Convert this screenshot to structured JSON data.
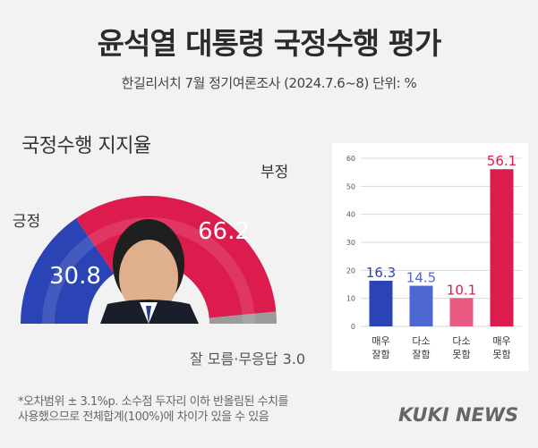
{
  "header": {
    "title": "윤석열 대통령 국정수행 평가",
    "subtitle": "한길리서치 7월 정기여론조사 (2024.7.6~8) 단위: %"
  },
  "section_title": "국정수행 지지율",
  "donut": {
    "positive_label": "긍정",
    "negative_label": "부정",
    "positive_value": "30.8",
    "negative_value": "66.2",
    "no_response_label": "잘 모름·무응답 3.0"
  },
  "bar_panel": {
    "categories": [
      [
        "매우",
        "잘함"
      ],
      [
        "다소",
        "잘함"
      ],
      [
        "다소",
        "못함"
      ],
      [
        "매우",
        "못함"
      ]
    ],
    "value_labels": [
      "16.3",
      "14.5",
      "10.1",
      "56.1"
    ],
    "ticks": [
      "0",
      "10",
      "20",
      "30",
      "40",
      "50",
      "60"
    ]
  },
  "footnote": {
    "line1": "*오차범위 ± 3.1%p. 소수점 두자리 이하 반올림된 수치를",
    "line2": "사용했으므로 전체합계(100%)에 차이가 있을 수 있음"
  },
  "brand": "KUKI NEWS",
  "colors": {
    "positive": "#2a44b5",
    "negative": "#dc1c4d",
    "no_response": "#9a9a9a",
    "bar_somewhat_good": "#4d68d2",
    "bar_somewhat_bad": "#e85a82"
  },
  "chart_data": [
    {
      "type": "pie",
      "style": "half-donut",
      "labels": [
        "긍정",
        "부정",
        "잘 모름·무응답"
      ],
      "values": [
        30.8,
        66.2,
        3.0
      ]
    },
    {
      "type": "bar",
      "categories": [
        "매우 잘함",
        "다소 잘함",
        "다소 못함",
        "매우 못함"
      ],
      "values": [
        16.3,
        14.5,
        10.1,
        56.1
      ],
      "ylim": [
        0,
        60
      ],
      "yticks": [
        0,
        10,
        20,
        30,
        40,
        50,
        60
      ],
      "grid": true
    }
  ]
}
